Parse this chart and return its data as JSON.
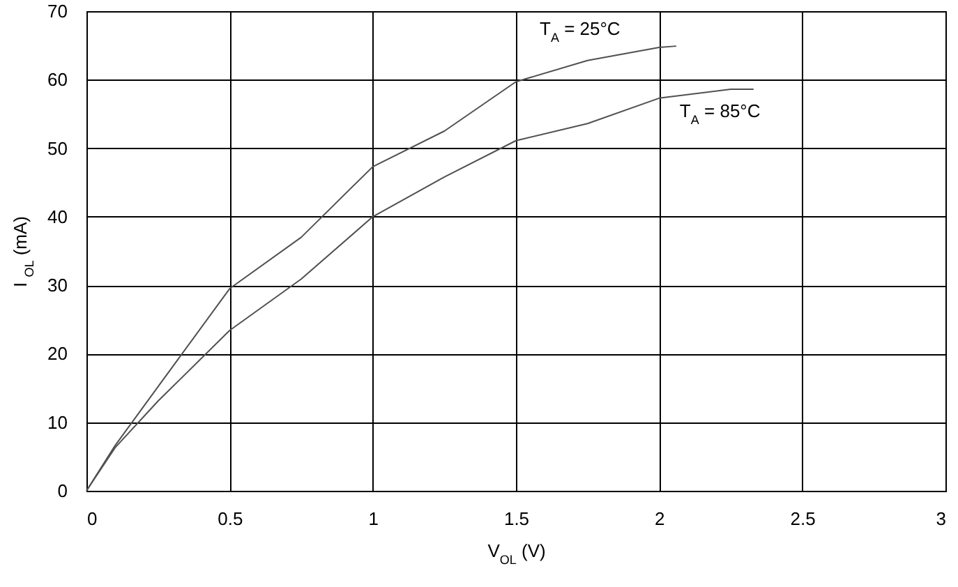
{
  "chart_data": {
    "type": "line",
    "xlabel": "V$_{OL}$ (V)",
    "ylabel": "I $_{OL}$ (mA)",
    "xlim": [
      0,
      3
    ],
    "xticks": [
      0,
      0.5,
      1,
      1.5,
      2,
      2.5,
      3
    ],
    "ylim": [
      0,
      70
    ],
    "yticks": [
      0,
      10,
      20,
      30,
      40,
      50,
      60,
      70
    ],
    "grid": true,
    "marker": "none",
    "line_style": "solid",
    "series": [
      {
        "name": "T$_{A}$ = 25°C",
        "color": "#505050",
        "x": [
          0,
          0.1,
          0.25,
          0.5,
          0.75,
          1,
          1.25,
          1.5,
          1.75,
          2,
          2.06
        ],
        "values": [
          0,
          6.6,
          15.2,
          29.5,
          37,
          47.3,
          52.5,
          59.7,
          62.8,
          64.7,
          64.9
        ]
      },
      {
        "name": "T$_{A}$ = 85°C",
        "color": "#505050",
        "x": [
          0,
          0.1,
          0.25,
          0.5,
          0.75,
          1,
          1.25,
          1.5,
          1.75,
          2,
          2.25,
          2.33
        ],
        "values": [
          0,
          6.3,
          13.1,
          23.4,
          30.9,
          40,
          45.8,
          51.1,
          53.6,
          57.3,
          58.6,
          58.6
        ]
      }
    ]
  }
}
